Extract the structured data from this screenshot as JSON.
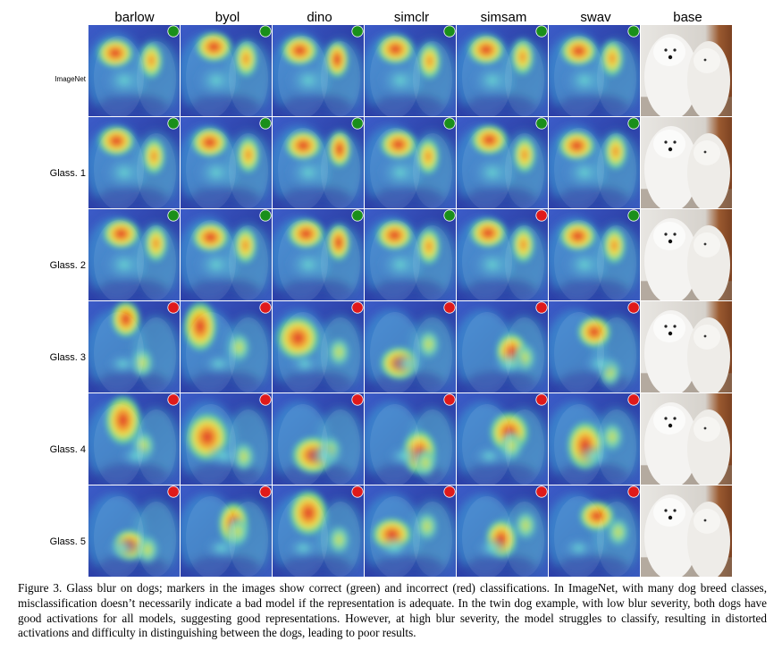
{
  "figure": {
    "columns": [
      "barlow",
      "byol",
      "dino",
      "simclr",
      "simsam",
      "swav",
      "base"
    ],
    "rows": [
      {
        "label": "ImageNet",
        "markers": [
          "green",
          "green",
          "green",
          "green",
          "green",
          "green"
        ]
      },
      {
        "label": "Glass. 1",
        "markers": [
          "green",
          "green",
          "green",
          "green",
          "green",
          "green"
        ]
      },
      {
        "label": "Glass. 2",
        "markers": [
          "green",
          "green",
          "green",
          "green",
          "red",
          "green"
        ]
      },
      {
        "label": "Glass. 3",
        "markers": [
          "red",
          "red",
          "red",
          "red",
          "red",
          "red"
        ]
      },
      {
        "label": "Glass. 4",
        "markers": [
          "red",
          "red",
          "red",
          "red",
          "red",
          "red"
        ]
      },
      {
        "label": "Glass. 5",
        "markers": [
          "red",
          "red",
          "red",
          "red",
          "red",
          "red"
        ]
      }
    ],
    "colors": {
      "correct": "#1a8f1a",
      "incorrect": "#e01a1a",
      "heat_base": "#2a3aa8"
    }
  },
  "caption": "Figure 3. Glass blur on dogs; markers in the images show correct (green) and incorrect (red) classifications. In ImageNet, with many dog breed classes, misclassification doesn’t necessarily indicate a bad model if the representation is adequate. In the twin dog example, with low blur severity, both dogs have good activations for all models, suggesting good representations. However, at high blur severity, the model struggles to classify, resulting in distorted activations and difficulty in distinguishing between the dogs, leading to poor results."
}
